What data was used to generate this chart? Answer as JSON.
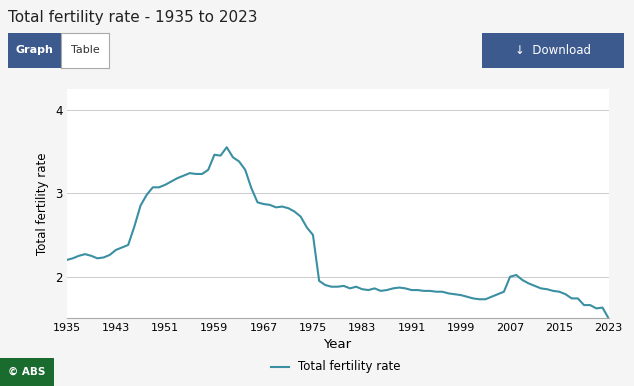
{
  "title": "Total fertility rate - 1935 to 2023",
  "xlabel": "Year",
  "ylabel": "Total fertility rate",
  "legend_label": "Total fertility rate",
  "line_color": "#3a8fa3",
  "background_color": "#f5f5f5",
  "plot_bg_color": "#ffffff",
  "grid_color": "#cccccc",
  "ylim": [
    1.5,
    4.25
  ],
  "yticks": [
    2,
    3,
    4
  ],
  "xtick_labels": [
    "1935",
    "1943",
    "1951",
    "1959",
    "1967",
    "1975",
    "1983",
    "1991",
    "1999",
    "2007",
    "2015",
    "2023"
  ],
  "years": [
    1935,
    1936,
    1937,
    1938,
    1939,
    1940,
    1941,
    1942,
    1943,
    1944,
    1945,
    1946,
    1947,
    1948,
    1949,
    1950,
    1951,
    1952,
    1953,
    1954,
    1955,
    1956,
    1957,
    1958,
    1959,
    1960,
    1961,
    1962,
    1963,
    1964,
    1965,
    1966,
    1967,
    1968,
    1969,
    1970,
    1971,
    1972,
    1973,
    1974,
    1975,
    1976,
    1977,
    1978,
    1979,
    1980,
    1981,
    1982,
    1983,
    1984,
    1985,
    1986,
    1987,
    1988,
    1989,
    1990,
    1991,
    1992,
    1993,
    1994,
    1995,
    1996,
    1997,
    1998,
    1999,
    2000,
    2001,
    2002,
    2003,
    2004,
    2005,
    2006,
    2007,
    2008,
    2009,
    2010,
    2011,
    2012,
    2013,
    2014,
    2015,
    2016,
    2017,
    2018,
    2019,
    2020,
    2021,
    2022,
    2023
  ],
  "values": [
    2.2,
    2.22,
    2.25,
    2.27,
    2.25,
    2.22,
    2.23,
    2.26,
    2.32,
    2.35,
    2.38,
    2.6,
    2.85,
    2.98,
    3.07,
    3.07,
    3.1,
    3.14,
    3.18,
    3.21,
    3.24,
    3.23,
    3.23,
    3.28,
    3.46,
    3.45,
    3.55,
    3.43,
    3.38,
    3.28,
    3.06,
    2.89,
    2.87,
    2.86,
    2.83,
    2.84,
    2.82,
    2.78,
    2.72,
    2.59,
    2.5,
    1.95,
    1.9,
    1.88,
    1.88,
    1.89,
    1.86,
    1.88,
    1.85,
    1.84,
    1.86,
    1.83,
    1.84,
    1.86,
    1.87,
    1.86,
    1.84,
    1.84,
    1.83,
    1.83,
    1.82,
    1.82,
    1.8,
    1.79,
    1.78,
    1.76,
    1.74,
    1.73,
    1.73,
    1.76,
    1.79,
    1.82,
    2.0,
    2.02,
    1.96,
    1.92,
    1.89,
    1.86,
    1.85,
    1.83,
    1.82,
    1.79,
    1.74,
    1.74,
    1.66,
    1.66,
    1.62,
    1.63,
    1.5
  ],
  "graph_btn_color": "#3b5998",
  "download_btn_color": "#3b5998",
  "abs_bg": "#2e7d32"
}
